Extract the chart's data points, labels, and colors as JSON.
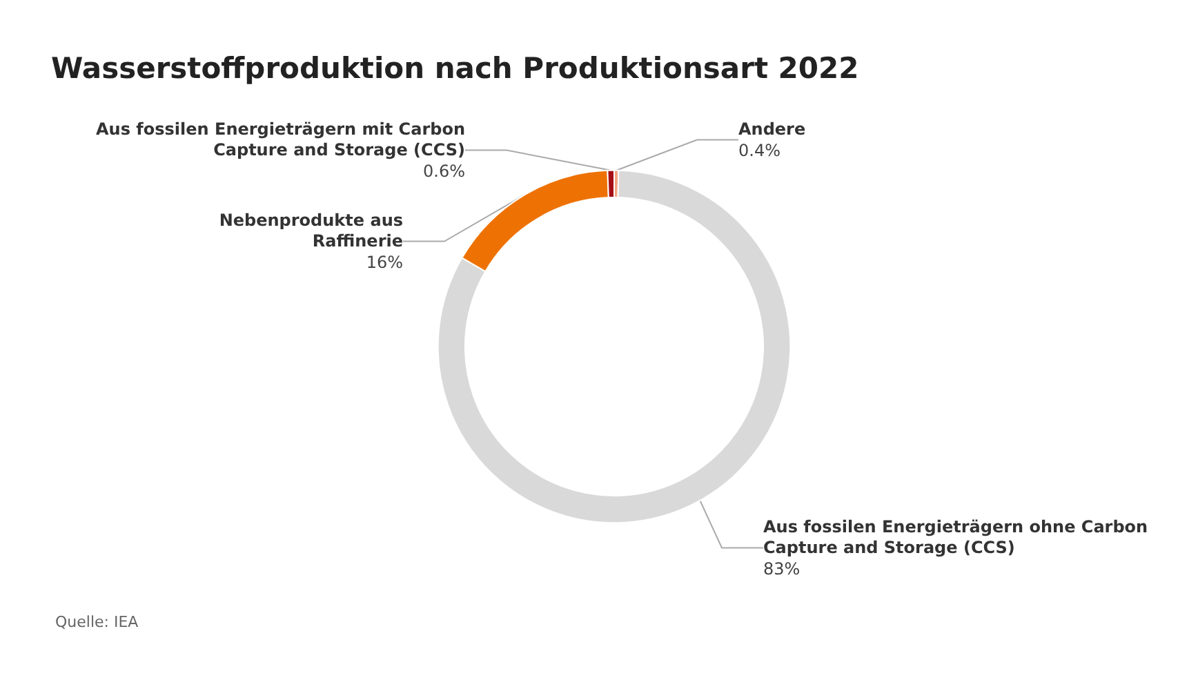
{
  "chart_data": {
    "type": "donut",
    "title": "Wasserstoffproduktion nach Produktionsart 2022",
    "categories": [
      "Andere",
      "Aus fossilen Energieträgern ohne Carbon Capture and Storage (CCS)",
      "Nebenprodukte aus Raffinerie",
      "Aus fossilen Energieträgern mit Carbon Capture and Storage (CCS)"
    ],
    "values": [
      0.4,
      83,
      16,
      0.6
    ],
    "colors": [
      "#f4a582",
      "#d9d9d9",
      "#ee7203",
      "#a50f15"
    ],
    "value_labels": [
      "0.4%",
      "83%",
      "16%",
      "0.6%"
    ],
    "legend": false,
    "annotations": [
      "Quelle: IEA"
    ]
  }
}
